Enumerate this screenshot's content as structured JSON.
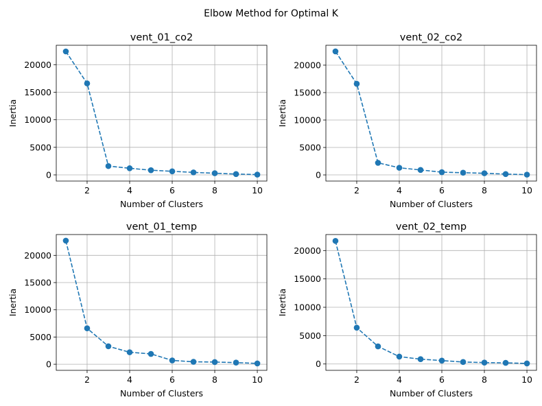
{
  "figure": {
    "suptitle": "Elbow Method for Optimal K"
  },
  "chart_data": [
    {
      "type": "line",
      "title": "vent_01_co2",
      "xlabel": "Number of Clusters",
      "ylabel": "Inertia",
      "x": [
        1,
        2,
        3,
        4,
        5,
        6,
        7,
        8,
        9,
        10
      ],
      "series": [
        {
          "values": [
            22400,
            16600,
            1600,
            1200,
            850,
            650,
            450,
            300,
            150,
            50
          ],
          "color": "#1f77b4",
          "linestyle": "dashed",
          "marker": "circle"
        }
      ],
      "xticks": [
        2,
        4,
        6,
        8,
        10
      ],
      "yticks": [
        0,
        5000,
        10000,
        15000,
        20000
      ],
      "xlim": [
        0.55,
        10.45
      ],
      "ylim": [
        -1120,
        23520
      ],
      "grid": true
    },
    {
      "type": "line",
      "title": "vent_02_co2",
      "xlabel": "Number of Clusters",
      "ylabel": "Inertia",
      "x": [
        1,
        2,
        3,
        4,
        5,
        6,
        7,
        8,
        9,
        10
      ],
      "series": [
        {
          "values": [
            22500,
            16600,
            2200,
            1300,
            900,
            500,
            400,
            300,
            150,
            50
          ],
          "color": "#1f77b4",
          "linestyle": "dashed",
          "marker": "circle"
        }
      ],
      "xticks": [
        2,
        4,
        6,
        8,
        10
      ],
      "yticks": [
        0,
        5000,
        10000,
        15000,
        20000
      ],
      "xlim": [
        0.55,
        10.45
      ],
      "ylim": [
        -1120,
        23620
      ],
      "grid": true
    },
    {
      "type": "line",
      "title": "vent_01_temp",
      "xlabel": "Number of Clusters",
      "ylabel": "Inertia",
      "x": [
        1,
        2,
        3,
        4,
        5,
        6,
        7,
        8,
        9,
        10
      ],
      "series": [
        {
          "values": [
            22700,
            6600,
            3300,
            2200,
            1900,
            700,
            450,
            400,
            300,
            150
          ],
          "color": "#1f77b4",
          "linestyle": "dashed",
          "marker": "circle"
        }
      ],
      "xticks": [
        2,
        4,
        6,
        8,
        10
      ],
      "yticks": [
        0,
        5000,
        10000,
        15000,
        20000
      ],
      "xlim": [
        0.55,
        10.45
      ],
      "ylim": [
        -1120,
        23820
      ],
      "grid": true
    },
    {
      "type": "line",
      "title": "vent_02_temp",
      "xlabel": "Number of Clusters",
      "ylabel": "Inertia",
      "x": [
        1,
        2,
        3,
        4,
        5,
        6,
        7,
        8,
        9,
        10
      ],
      "series": [
        {
          "values": [
            21700,
            6400,
            3100,
            1300,
            850,
            600,
            350,
            250,
            200,
            100
          ],
          "color": "#1f77b4",
          "linestyle": "dashed",
          "marker": "circle"
        }
      ],
      "xticks": [
        2,
        4,
        6,
        8,
        10
      ],
      "yticks": [
        0,
        5000,
        10000,
        15000,
        20000
      ],
      "xlim": [
        0.55,
        10.45
      ],
      "ylim": [
        -1120,
        22820
      ],
      "grid": true
    }
  ]
}
